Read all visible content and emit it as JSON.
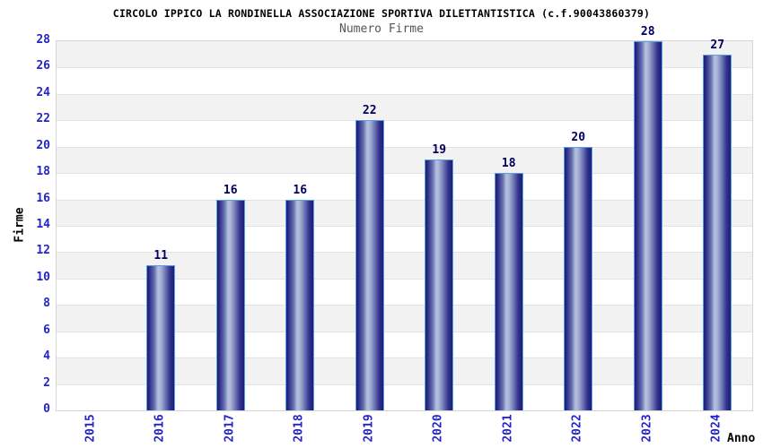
{
  "chart_data": {
    "type": "bar",
    "title": "CIRCOLO IPPICO LA RONDINELLA ASSOCIAZIONE SPORTIVA DILETTANTISTICA (c.f.90043860379)",
    "subtitle": "Numero Firme",
    "categories": [
      "2015",
      "2016",
      "2017",
      "2018",
      "2019",
      "2020",
      "2021",
      "2022",
      "2023",
      "2024"
    ],
    "values": [
      0,
      11,
      16,
      16,
      22,
      19,
      18,
      20,
      28,
      27
    ],
    "xlabel": "Anno",
    "ylabel": "Firme",
    "ylim": [
      0,
      28
    ],
    "ytick_step": 2,
    "grid": true,
    "legend": "none",
    "bands_alternating": true,
    "colors": {
      "bar_dark": "#1d1d76",
      "bar_mid": "#6670b0",
      "bar_light": "#b6c0de",
      "bar_border": "#58a0e6",
      "value_label": "#00005f",
      "tick_label": "#2424cc",
      "axis_label": "#000000",
      "title": "#000000",
      "subtitle": "#555555",
      "band_alt": "#f2f2f2",
      "band_base": "#ffffff",
      "gridline": "#e2e2e2",
      "plot_border": "#d5d5d5"
    }
  }
}
